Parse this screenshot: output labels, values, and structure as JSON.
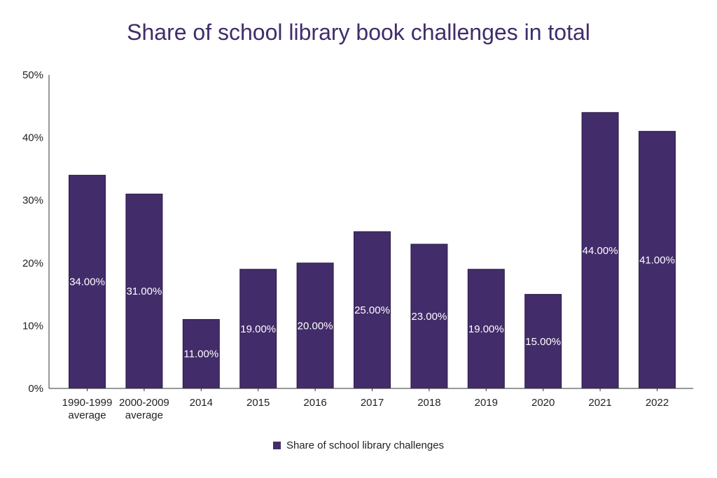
{
  "chart_data": {
    "type": "bar",
    "title": "Share of school library book challenges in total",
    "xlabel": "",
    "ylabel": "",
    "categories": [
      [
        "1990-1999",
        "average"
      ],
      [
        "2000-2009",
        "average"
      ],
      [
        "2014"
      ],
      [
        "2015"
      ],
      [
        "2016"
      ],
      [
        "2017"
      ],
      [
        "2018"
      ],
      [
        "2019"
      ],
      [
        "2020"
      ],
      [
        "2021"
      ],
      [
        "2022"
      ]
    ],
    "series": [
      {
        "name": "Share of school library challenges",
        "values": [
          34,
          31,
          11,
          19,
          20,
          25,
          23,
          19,
          15,
          44,
          41
        ],
        "data_labels": [
          "34.00%",
          "31.00%",
          "11.00%",
          "19.00%",
          "20.00%",
          "25.00%",
          "23.00%",
          "19.00%",
          "15.00%",
          "44.00%",
          "41.00%"
        ],
        "color": "#432c6a"
      }
    ],
    "ylim": [
      0,
      50
    ],
    "yticks": [
      "0%",
      "10%",
      "20%",
      "30%",
      "40%",
      "50%"
    ],
    "grid": false,
    "legend": "bottom-center"
  }
}
